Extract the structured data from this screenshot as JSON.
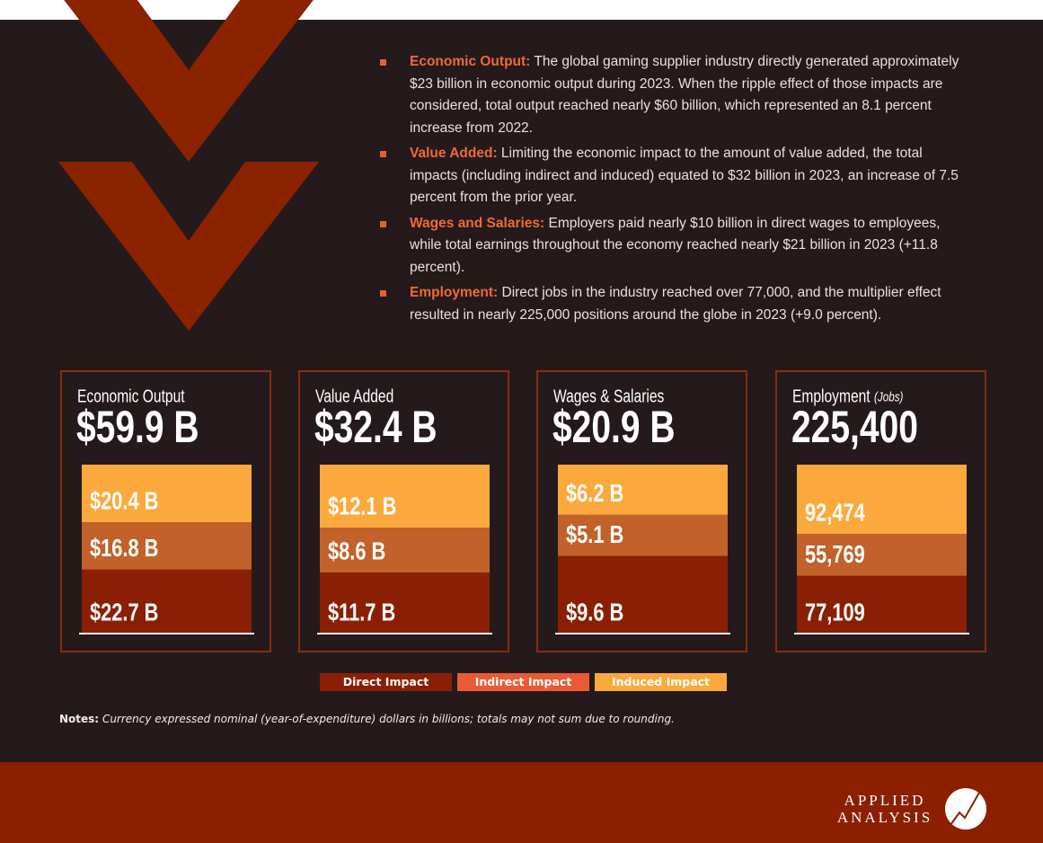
{
  "bullets": [
    {
      "label": "Economic Output:",
      "text": "The global gaming supplier industry directly generated approximately $23 billion in economic output during 2023. When the ripple effect of those impacts are considered, total output reached nearly $60 billion, which represented an 8.1 percent increase from 2022."
    },
    {
      "label": "Value Added:",
      "text": "Limiting the economic impact to the amount of value added, the total impacts (including indirect and induced) equated to $32 billion in 2023, an increase of 7.5 percent from the prior year."
    },
    {
      "label": "Wages and Salaries:",
      "text": "Employers paid nearly $10 billion in direct wages to employees, while total earnings throughout the economy reached nearly $21 billion in 2023 (+11.8 percent)."
    },
    {
      "label": "Employment:",
      "text": "Direct jobs in the industry reached over 77,000, and the multiplier effect resulted in nearly 225,000 positions around the globe in 2023 (+9.0 percent)."
    }
  ],
  "chart_data": [
    {
      "type": "bar",
      "stacked": true,
      "title": "Economic Output",
      "total": 59.9,
      "total_label": "$59.9 B",
      "ylim": [
        0,
        59.9
      ],
      "series": [
        {
          "color": "#8a1f05",
          "values": [
            22.7
          ],
          "value_labels": [
            "$22.7 B"
          ]
        },
        {
          "color": "#c2612a",
          "values": [
            16.8
          ],
          "value_labels": [
            "$16.8 B"
          ]
        },
        {
          "color": "#fba93c",
          "values": [
            20.4
          ],
          "value_labels": [
            "$20.4 B"
          ]
        }
      ]
    },
    {
      "type": "bar",
      "stacked": true,
      "title": "Value Added",
      "total": 32.4,
      "total_label": "$32.4 B",
      "ylim": [
        0,
        32.4
      ],
      "series": [
        {
          "color": "#8a1f05",
          "values": [
            11.7
          ],
          "value_labels": [
            "$11.7 B"
          ]
        },
        {
          "color": "#c2612a",
          "values": [
            8.6
          ],
          "value_labels": [
            "$8.6 B"
          ]
        },
        {
          "color": "#fba93c",
          "values": [
            12.1
          ],
          "value_labels": [
            "$12.1 B"
          ]
        }
      ]
    },
    {
      "type": "bar",
      "stacked": true,
      "title": "Wages & Salaries",
      "total": 20.9,
      "total_label": "$20.9 B",
      "ylim": [
        0,
        20.9
      ],
      "series": [
        {
          "color": "#8a1f05",
          "values": [
            9.6
          ],
          "value_labels": [
            "$9.6 B"
          ]
        },
        {
          "color": "#c2612a",
          "values": [
            5.1
          ],
          "value_labels": [
            "$5.1 B"
          ]
        },
        {
          "color": "#fba93c",
          "values": [
            6.2
          ],
          "value_labels": [
            "$6.2 B"
          ]
        }
      ]
    },
    {
      "type": "bar",
      "stacked": true,
      "title": "Employment",
      "unit": "(Jobs)",
      "total": 225400,
      "total_label": "225,400",
      "ylim": [
        0,
        225400
      ],
      "series": [
        {
          "color": "#8a1f05",
          "values": [
            77109
          ],
          "value_labels": [
            "77,109"
          ]
        },
        {
          "color": "#c2612a",
          "values": [
            55769
          ],
          "value_labels": [
            "55,769"
          ]
        },
        {
          "color": "#fba93c",
          "values": [
            92474
          ],
          "value_labels": [
            "92,474"
          ]
        }
      ]
    }
  ],
  "legend": [
    {
      "name": "Direct Impact",
      "color": "#8a1f05"
    },
    {
      "name": "Indirect Impact",
      "color": "#ea5b33"
    },
    {
      "name": "Induced Impact",
      "color": "#fba93c"
    }
  ],
  "notes": {
    "label": "Notes:",
    "text": "Currency expressed nominal (year-of-expenditure) dollars in billions; totals may not sum due to rounding."
  },
  "logo": {
    "line1": "APPLIED",
    "line2": "ANALYSIS"
  }
}
